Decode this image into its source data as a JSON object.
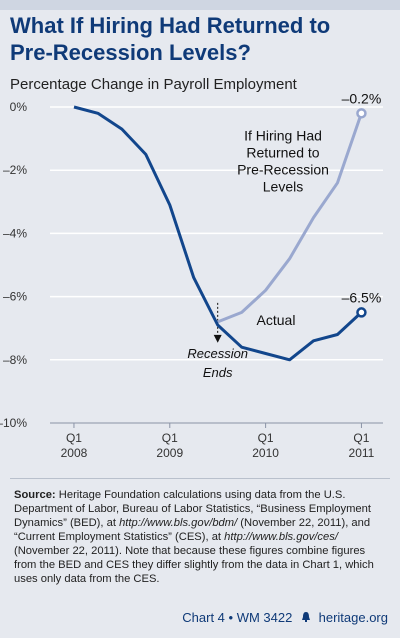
{
  "title_line1": "What If Hiring Had Returned to",
  "title_line2": "Pre-Recession Levels?",
  "subtitle": "Percentage Change in Payroll Employment",
  "source_label": "Source:",
  "source_text_1": "Heritage Foundation calculations using data from the U.S. Department of Labor, Bureau of Labor Statistics, “Business Employment Dynamics” (BED), at ",
  "source_url_1": "http://www.bls.gov/bdm/",
  "source_text_2": " (November 22, 2011), and “Current Employment Statistics” (CES), at ",
  "source_url_2": "http://www.bls.gov/ces/",
  "source_text_3": " (November 22, 2011). Note that because these figures combine figures from the BED and CES they differ slightly from the data in Chart 1, which uses only data from the CES.",
  "footer_chart": "Chart 4",
  "footer_bullet": "•",
  "footer_wm": "WM 3422",
  "footer_site": "heritage.org",
  "colors": {
    "title": "#0f3a78",
    "actual": "#12468c",
    "hypothetical": "#9aa8cf",
    "background": "#e6e9ef",
    "grid": "#ffffff"
  },
  "chart_data": {
    "type": "line",
    "ylim": [
      -10,
      0
    ],
    "yticks": [
      0,
      -2,
      -4,
      -6,
      -8,
      -10
    ],
    "ytick_labels": [
      "0%",
      "–2%",
      "–4%",
      "–6%",
      "–8%",
      "–10%"
    ],
    "x_quarters": [
      0,
      11.5
    ],
    "xticks": [
      {
        "q": 1,
        "line1": "Q1",
        "line2": "2008"
      },
      {
        "q": 5,
        "line1": "Q1",
        "line2": "2009"
      },
      {
        "q": 9,
        "line1": "Q1",
        "line2": "2010"
      },
      {
        "q": 13,
        "line1": "Q1",
        "line2": "2011"
      }
    ],
    "series": [
      {
        "name": "Actual",
        "x": [
          1,
          2,
          3,
          4,
          5,
          6,
          7,
          8,
          9,
          10,
          11,
          12,
          13
        ],
        "values": [
          0,
          -0.2,
          -0.7,
          -1.5,
          -3.1,
          -5.4,
          -6.9,
          -7.6,
          -7.8,
          -8.0,
          -7.4,
          -7.2,
          -6.5
        ]
      },
      {
        "name": "If Hiring Had Returned to Pre-Recession Levels",
        "x": [
          7,
          8,
          9,
          10,
          11,
          12,
          13
        ],
        "values": [
          -6.8,
          -6.5,
          -5.8,
          -4.8,
          -3.5,
          -2.4,
          -0.2
        ]
      }
    ],
    "end_labels": [
      "–0.2%",
      "–6.5%"
    ],
    "annotations": {
      "hypo_label": [
        "If Hiring Had",
        "Returned to",
        "Pre-Recession",
        "Levels"
      ],
      "actual_label": "Actual",
      "recession_label": [
        "Recession",
        "Ends"
      ],
      "recession_quarter": 7
    }
  }
}
